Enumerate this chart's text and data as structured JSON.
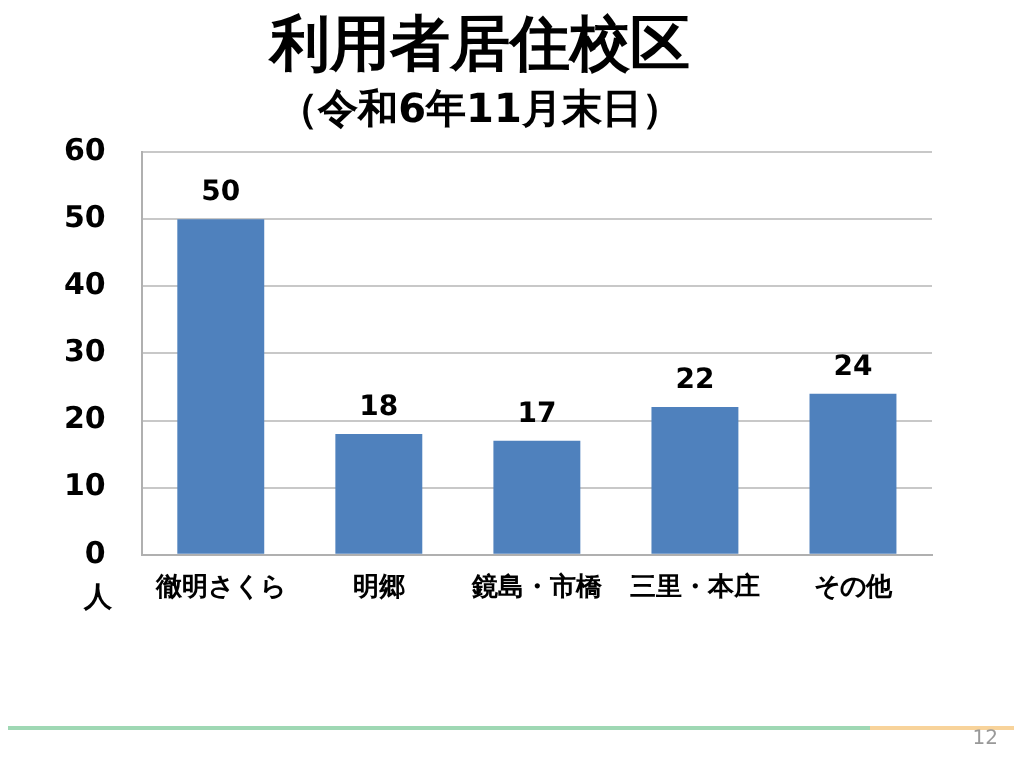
{
  "chart_data": {
    "type": "bar",
    "title": "利用者居住校区",
    "subtitle": "（令和6年11月末日）",
    "ylabel": "人",
    "categories": [
      "徹明さくら",
      "明郷",
      "鏡島・市橋",
      "三里・本庄",
      "その他"
    ],
    "values": [
      50,
      18,
      17,
      22,
      24
    ],
    "color": "#4f81bd",
    "ylim": [
      0,
      60
    ],
    "yticks": [
      0,
      10,
      20,
      30,
      40,
      50,
      60
    ],
    "grid": "y",
    "data_labels": true,
    "annotations": [
      "12"
    ]
  }
}
